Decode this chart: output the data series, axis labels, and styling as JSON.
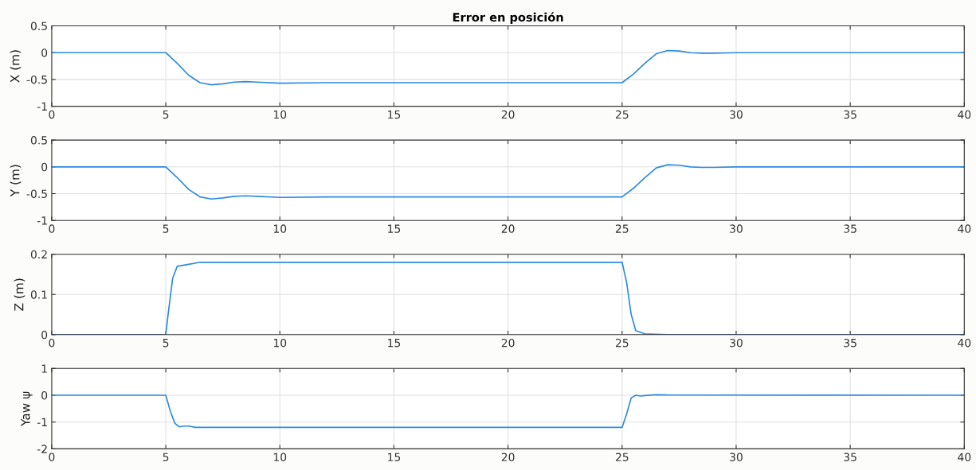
{
  "chart_data": [
    {
      "type": "line",
      "title": "Error en posición",
      "ylabel": "X (m)",
      "xlim": [
        0,
        40
      ],
      "xticks": [
        0,
        5,
        10,
        15,
        20,
        25,
        30,
        35,
        40
      ],
      "ylim": [
        -1,
        0.5
      ],
      "yticks": [
        -1,
        -0.5,
        0,
        0.5
      ],
      "grid": true,
      "series": [
        {
          "color": "#2b8be0",
          "x": [
            0,
            5,
            5.5,
            6,
            6.5,
            7,
            7.5,
            8,
            8.5,
            9,
            10,
            12,
            25,
            25.5,
            26,
            26.5,
            27,
            27.5,
            28,
            28.5,
            29,
            30,
            40
          ],
          "values": [
            0,
            0,
            -0.2,
            -0.42,
            -0.56,
            -0.6,
            -0.58,
            -0.55,
            -0.54,
            -0.55,
            -0.57,
            -0.56,
            -0.56,
            -0.4,
            -0.2,
            -0.02,
            0.04,
            0.03,
            0.0,
            -0.01,
            -0.01,
            0,
            0
          ]
        }
      ]
    },
    {
      "type": "line",
      "ylabel": "Y (m)",
      "xlim": [
        0,
        40
      ],
      "xticks": [
        0,
        5,
        10,
        15,
        20,
        25,
        30,
        35,
        40
      ],
      "ylim": [
        -1,
        0.5
      ],
      "yticks": [
        -1,
        -0.5,
        0,
        0.5
      ],
      "grid": true,
      "series": [
        {
          "color": "#2b8be0",
          "x": [
            0,
            5,
            5.5,
            6,
            6.5,
            7,
            7.5,
            8,
            8.5,
            9,
            10,
            12,
            25,
            25.5,
            26,
            26.5,
            27,
            27.5,
            28,
            28.5,
            29,
            30,
            40
          ],
          "values": [
            0,
            0,
            -0.2,
            -0.42,
            -0.56,
            -0.6,
            -0.58,
            -0.55,
            -0.54,
            -0.55,
            -0.57,
            -0.56,
            -0.56,
            -0.4,
            -0.2,
            -0.02,
            0.04,
            0.03,
            0.0,
            -0.01,
            -0.01,
            0,
            0
          ]
        }
      ]
    },
    {
      "type": "line",
      "ylabel": "Z (m)",
      "xlim": [
        0,
        40
      ],
      "xticks": [
        0,
        5,
        10,
        15,
        20,
        25,
        30,
        35,
        40
      ],
      "ylim": [
        0,
        0.2
      ],
      "yticks": [
        0,
        0.1,
        0.2
      ],
      "grid": true,
      "series": [
        {
          "color": "#2b8be0",
          "x": [
            0,
            5,
            5.1,
            5.3,
            5.5,
            6,
            6.5,
            25,
            25.2,
            25.4,
            25.6,
            26,
            27,
            40
          ],
          "values": [
            0,
            0,
            0.05,
            0.14,
            0.17,
            0.175,
            0.18,
            0.18,
            0.13,
            0.05,
            0.01,
            0.002,
            0,
            0
          ]
        }
      ]
    },
    {
      "type": "line",
      "ylabel": "Yaw ψ",
      "xlim": [
        0,
        40
      ],
      "xticks": [
        0,
        5,
        10,
        15,
        20,
        25,
        30,
        35,
        40
      ],
      "ylim": [
        -2,
        1
      ],
      "yticks": [
        -2,
        -1,
        0,
        1
      ],
      "grid": true,
      "series": [
        {
          "color": "#2b8be0",
          "x": [
            0,
            5,
            5.2,
            5.4,
            5.6,
            5.8,
            6,
            6.3,
            7,
            25,
            25.2,
            25.4,
            25.6,
            25.8,
            26,
            26.5,
            27,
            40
          ],
          "values": [
            0,
            0,
            -0.6,
            -1.05,
            -1.18,
            -1.15,
            -1.15,
            -1.2,
            -1.2,
            -1.2,
            -0.7,
            -0.1,
            0,
            -0.03,
            -0.01,
            0.02,
            0.01,
            0
          ]
        }
      ]
    }
  ]
}
